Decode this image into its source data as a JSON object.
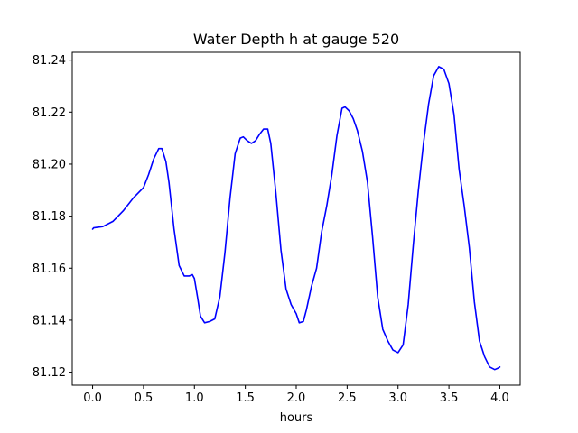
{
  "chart_data": {
    "type": "line",
    "title": "Water Depth h at gauge 520",
    "xlabel": "hours",
    "ylabel": "",
    "xlim": [
      -0.2,
      4.2
    ],
    "ylim": [
      81.115,
      81.243
    ],
    "grid": false,
    "x_ticks": [
      0.0,
      0.5,
      1.0,
      1.5,
      2.0,
      2.5,
      3.0,
      3.5,
      4.0
    ],
    "x_tick_labels": [
      "0.0",
      "0.5",
      "1.0",
      "1.5",
      "2.0",
      "2.5",
      "3.0",
      "3.5",
      "4.0"
    ],
    "y_ticks": [
      81.12,
      81.14,
      81.16,
      81.18,
      81.2,
      81.22,
      81.24
    ],
    "y_tick_labels": [
      "81.12",
      "81.14",
      "81.16",
      "81.18",
      "81.20",
      "81.22",
      "81.24"
    ],
    "series": [
      {
        "color": "#0000ff",
        "x": [
          0.0,
          0.01,
          0.1,
          0.2,
          0.3,
          0.4,
          0.45,
          0.5,
          0.55,
          0.6,
          0.65,
          0.68,
          0.72,
          0.75,
          0.8,
          0.85,
          0.9,
          0.95,
          0.98,
          1.0,
          1.03,
          1.06,
          1.1,
          1.15,
          1.2,
          1.25,
          1.3,
          1.35,
          1.4,
          1.45,
          1.48,
          1.52,
          1.56,
          1.6,
          1.64,
          1.68,
          1.72,
          1.75,
          1.8,
          1.85,
          1.9,
          1.95,
          2.0,
          2.03,
          2.07,
          2.1,
          2.15,
          2.2,
          2.25,
          2.3,
          2.35,
          2.4,
          2.45,
          2.48,
          2.52,
          2.56,
          2.6,
          2.65,
          2.7,
          2.75,
          2.8,
          2.85,
          2.9,
          2.95,
          3.0,
          3.05,
          3.1,
          3.15,
          3.2,
          3.25,
          3.3,
          3.35,
          3.4,
          3.45,
          3.5,
          3.55,
          3.6,
          3.65,
          3.7,
          3.75,
          3.8,
          3.85,
          3.9,
          3.95,
          3.98,
          4.0
        ],
        "y": [
          81.175,
          81.1755,
          81.176,
          81.178,
          81.182,
          81.187,
          81.189,
          81.191,
          81.196,
          81.202,
          81.206,
          81.206,
          81.201,
          81.193,
          81.175,
          81.161,
          81.157,
          81.157,
          81.1575,
          81.156,
          81.149,
          81.1415,
          81.139,
          81.1395,
          81.1405,
          81.149,
          81.166,
          81.187,
          81.204,
          81.21,
          81.2105,
          81.209,
          81.208,
          81.209,
          81.2115,
          81.2135,
          81.2135,
          81.208,
          81.189,
          81.167,
          81.152,
          81.146,
          81.1425,
          81.139,
          81.1395,
          81.144,
          81.153,
          81.16,
          81.174,
          81.184,
          81.196,
          81.211,
          81.2215,
          81.222,
          81.2205,
          81.2175,
          81.213,
          81.205,
          81.193,
          81.172,
          81.149,
          81.1365,
          81.132,
          81.1285,
          81.1275,
          81.1305,
          81.146,
          81.169,
          81.19,
          81.208,
          81.223,
          81.234,
          81.2375,
          81.2365,
          81.231,
          81.219,
          81.198,
          81.184,
          81.168,
          81.147,
          81.132,
          81.126,
          81.122,
          81.121,
          81.1215,
          81.122
        ]
      }
    ]
  }
}
